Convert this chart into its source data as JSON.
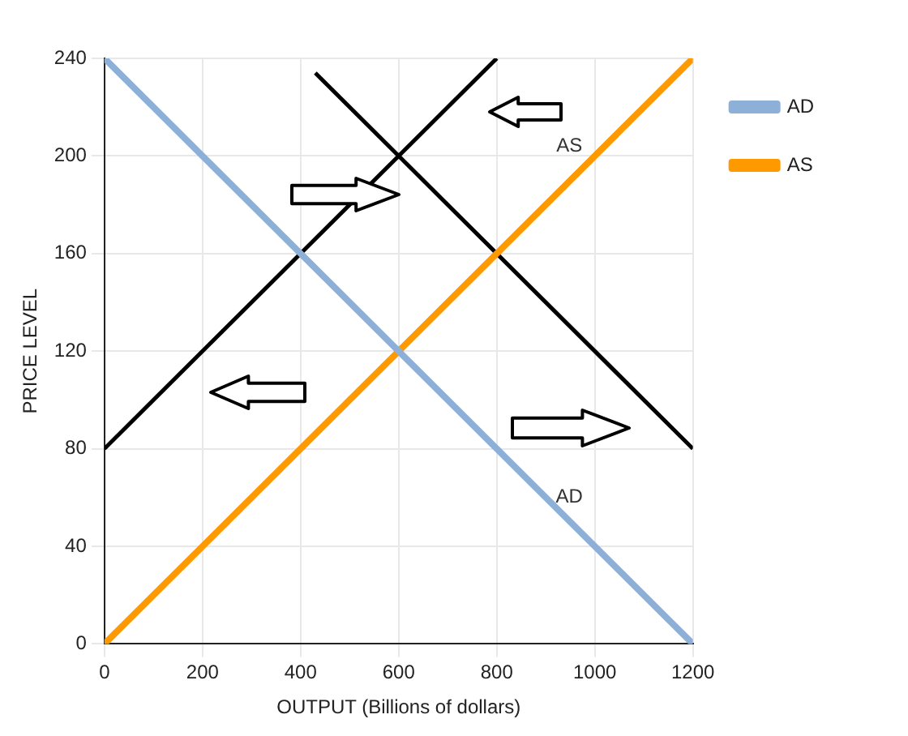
{
  "chart_data": {
    "type": "line",
    "xlabel": "OUTPUT (Billions of dollars)",
    "ylabel": "PRICE LEVEL",
    "xlim": [
      0,
      1200
    ],
    "xticks": [
      0,
      200,
      400,
      600,
      800,
      1000,
      1200
    ],
    "ylim": [
      0,
      240
    ],
    "yticks": [
      0,
      40,
      80,
      120,
      160,
      200,
      240
    ],
    "grid": true,
    "legend": "right",
    "marker": "none",
    "line_style": "solid",
    "series": [
      {
        "name": "AD",
        "color": "#8cb0d8",
        "x": [
          0,
          1200
        ],
        "values": [
          240,
          0
        ]
      },
      {
        "name": "AS",
        "color": "#ff9900",
        "x": [
          0,
          1200
        ],
        "values": [
          0,
          240
        ]
      },
      {
        "color": "#000000",
        "x": [
          0,
          800
        ],
        "values": [
          80,
          240
        ]
      },
      {
        "color": "#000000",
        "x": [
          430,
          1200
        ],
        "values": [
          234,
          80
        ]
      }
    ],
    "annotations": [
      "AS",
      "AD"
    ]
  }
}
